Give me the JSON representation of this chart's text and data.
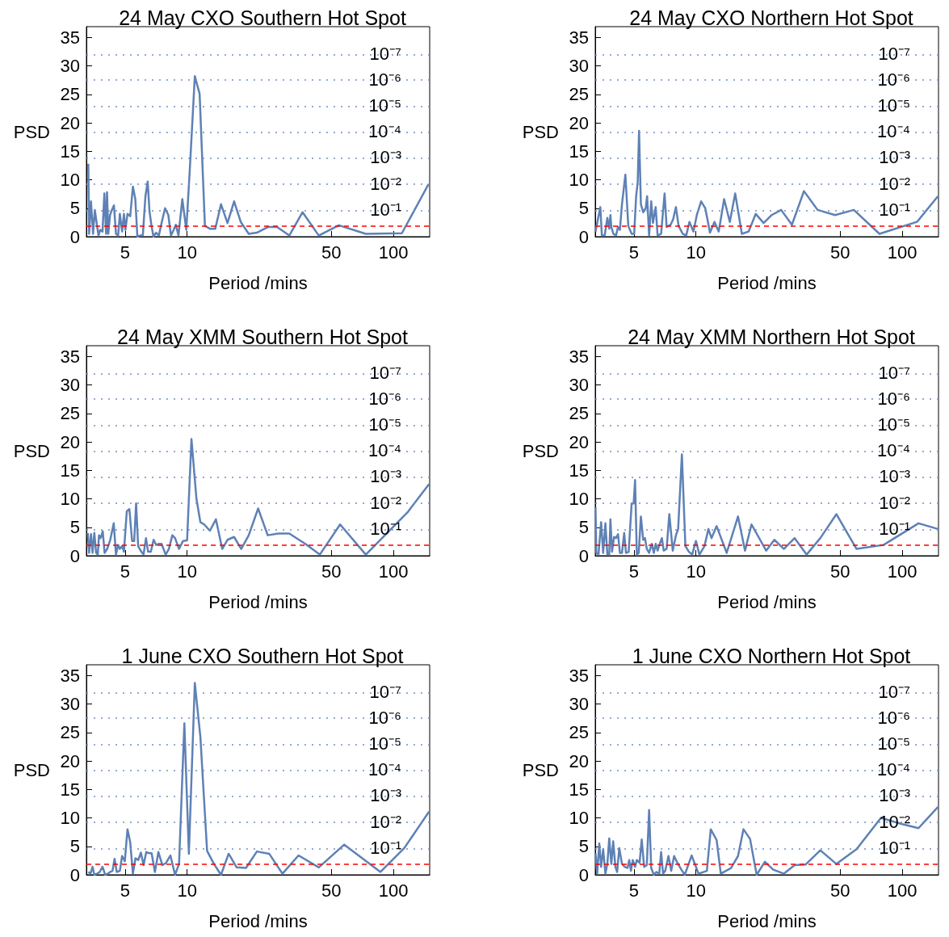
{
  "chart_data": [
    {
      "type": "line",
      "title": "24 May CXO Southern Hot Spot",
      "xlabel": "Period /mins",
      "ylabel": "PSD",
      "log": "x",
      "xlim": [
        3.25,
        150
      ],
      "ylim": [
        0,
        36.9
      ],
      "xticks": [
        5,
        10,
        50,
        100
      ],
      "yticks": [
        0,
        5,
        10,
        15,
        20,
        25,
        30,
        35
      ],
      "color": "#5e81b5",
      "x": [
        3.32,
        3.35,
        3.42,
        3.5,
        3.57,
        3.66,
        3.72,
        3.79,
        3.89,
        3.97,
        4.05,
        4.09,
        4.15,
        4.23,
        4.32,
        4.42,
        4.52,
        4.63,
        4.72,
        4.84,
        4.94,
        5.02,
        5.14,
        5.3,
        5.46,
        5.61,
        5.74,
        5.92,
        6.1,
        6.28,
        6.44,
        6.57,
        6.71,
        6.87,
        7.08,
        7.3,
        7.52,
        7.82,
        8.11,
        8.35,
        8.61,
        8.82,
        9.08,
        9.48,
        9.91,
        10.3,
        10.9,
        11.5,
        12.2,
        12.9,
        13.7,
        14.6,
        15.7,
        16.9,
        18.2,
        19.9,
        21.8,
        24.6,
        27.3,
        31.3,
        36.3,
        43.5,
        54.4,
        73.5,
        110,
        148
      ],
      "values": [
        12.8,
        0.5,
        6.2,
        0.5,
        4.7,
        1.9,
        0.2,
        1.2,
        0.9,
        7.6,
        0.5,
        7.8,
        0.5,
        3.8,
        4.7,
        5.5,
        0.5,
        0.2,
        4.0,
        0.9,
        4.0,
        1.2,
        4.0,
        3.6,
        8.8,
        6.6,
        0,
        0.2,
        0.2,
        7.1,
        9.7,
        4.5,
        2.1,
        0,
        0.7,
        0.2,
        2.4,
        5.0,
        3.8,
        0.2,
        1.2,
        2.1,
        0.2,
        6.6,
        1.2,
        11.6,
        28.2,
        25.1,
        1.9,
        1.4,
        1.4,
        5.7,
        2.4,
        6.2,
        2.6,
        0.5,
        0.7,
        1.7,
        1.7,
        0.2,
        4.3,
        0.2,
        2.0,
        0.5,
        0.6,
        9.2
      ],
      "ref_lines": [
        {
          "axis": "y",
          "value": 32.0,
          "label": "10⁻⁷",
          "color": "#6f8fc4",
          "line_style": "dotted"
        },
        {
          "axis": "y",
          "value": 27.5,
          "label": "10⁻⁶",
          "color": "#6f8fc4",
          "line_style": "dotted"
        },
        {
          "axis": "y",
          "value": 22.9,
          "label": "10⁻⁵",
          "color": "#6f8fc4",
          "line_style": "dotted"
        },
        {
          "axis": "y",
          "value": 18.4,
          "label": "10⁻⁴",
          "color": "#6f8fc4",
          "line_style": "dotted"
        },
        {
          "axis": "y",
          "value": 13.8,
          "label": "10⁻³",
          "color": "#6f8fc4",
          "line_style": "dotted"
        },
        {
          "axis": "y",
          "value": 9.2,
          "label": "10⁻²",
          "color": "#6f8fc4",
          "line_style": "dotted"
        },
        {
          "axis": "y",
          "value": 4.6,
          "label": "10⁻¹",
          "color": "#6f8fc4",
          "line_style": "dotted"
        },
        {
          "axis": "y",
          "value": 1.9,
          "color": "#ff0000",
          "line_style": "dashed"
        }
      ]
    },
    {
      "type": "line",
      "title": "24 May CXO Northern Hot Spot",
      "xlabel": "Period /mins",
      "ylabel": "PSD",
      "log": "x",
      "xlim": [
        3.25,
        150
      ],
      "ylim": [
        0,
        36.9
      ],
      "xticks": [
        5,
        10,
        50,
        100
      ],
      "yticks": [
        0,
        5,
        10,
        15,
        20,
        25,
        30,
        35
      ],
      "color": "#5e81b5",
      "x": [
        3.26,
        3.44,
        3.5,
        3.61,
        3.72,
        3.8,
        3.85,
        3.89,
        3.98,
        4.1,
        4.19,
        4.28,
        4.38,
        4.55,
        4.7,
        4.88,
        5.02,
        5.13,
        5.22,
        5.3,
        5.41,
        5.55,
        5.71,
        5.8,
        5.93,
        6.07,
        6.19,
        6.38,
        6.52,
        6.78,
        7.05,
        7.21,
        7.54,
        7.76,
        8.0,
        8.24,
        8.63,
        8.97,
        9.3,
        9.73,
        10.1,
        10.6,
        11.1,
        11.7,
        12.3,
        12.9,
        13.7,
        14.6,
        15.5,
        16.7,
        18.0,
        19.5,
        21.3,
        23.3,
        25.9,
        29.2,
        33.4,
        38.9,
        47.3,
        58.3,
        77.6,
        118,
        149
      ],
      "values": [
        0.9,
        5.2,
        0.2,
        0.2,
        3.3,
        1.4,
        3.8,
        1.7,
        0.5,
        0.2,
        1.7,
        1.2,
        5.7,
        10.9,
        1.9,
        0.5,
        0.5,
        7.1,
        9.5,
        18.6,
        5.7,
        4.3,
        5.0,
        7.1,
        0.2,
        6.2,
        2.4,
        5.2,
        0.2,
        0.5,
        7.6,
        1.7,
        2.1,
        3.1,
        5.2,
        1.9,
        0.5,
        0.2,
        2.6,
        0.9,
        3.8,
        6.2,
        5.0,
        0.7,
        2.6,
        0.9,
        6.6,
        2.6,
        7.6,
        0.5,
        0.9,
        4.0,
        2.4,
        3.8,
        4.7,
        2.1,
        8.0,
        4.7,
        3.8,
        4.7,
        0.5,
        2.6,
        7.1
      ],
      "ref_lines": [
        {
          "axis": "y",
          "value": 32.0,
          "label": "10⁻⁷",
          "color": "#6f8fc4",
          "line_style": "dotted"
        },
        {
          "axis": "y",
          "value": 27.5,
          "label": "10⁻⁶",
          "color": "#6f8fc4",
          "line_style": "dotted"
        },
        {
          "axis": "y",
          "value": 22.9,
          "label": "10⁻⁵",
          "color": "#6f8fc4",
          "line_style": "dotted"
        },
        {
          "axis": "y",
          "value": 18.4,
          "label": "10⁻⁴",
          "color": "#6f8fc4",
          "line_style": "dotted"
        },
        {
          "axis": "y",
          "value": 13.8,
          "label": "10⁻³",
          "color": "#6f8fc4",
          "line_style": "dotted"
        },
        {
          "axis": "y",
          "value": 9.2,
          "label": "10⁻²",
          "color": "#6f8fc4",
          "line_style": "dotted"
        },
        {
          "axis": "y",
          "value": 4.6,
          "label": "10⁻¹",
          "color": "#6f8fc4",
          "line_style": "dotted"
        },
        {
          "axis": "y",
          "value": 1.9,
          "color": "#ff0000",
          "line_style": "dashed"
        }
      ]
    },
    {
      "type": "line",
      "title": "24 May XMM Southern Hot Spot",
      "xlabel": "Period /mins",
      "ylabel": "PSD",
      "log": "x",
      "xlim": [
        3.25,
        150
      ],
      "ylim": [
        0,
        36.9
      ],
      "xticks": [
        5,
        10,
        50,
        100
      ],
      "yticks": [
        0,
        5,
        10,
        15,
        20,
        25,
        30,
        35
      ],
      "color": "#5e81b5",
      "x": [
        3.3,
        3.35,
        3.42,
        3.48,
        3.55,
        3.62,
        3.69,
        3.74,
        3.81,
        3.9,
        3.98,
        4.1,
        4.24,
        4.41,
        4.52,
        4.63,
        4.72,
        4.84,
        4.94,
        5.1,
        5.25,
        5.41,
        5.54,
        5.66,
        5.79,
        6.0,
        6.15,
        6.32,
        6.47,
        6.67,
        6.88,
        7.08,
        7.3,
        7.52,
        7.87,
        8.16,
        8.48,
        8.74,
        9.14,
        9.56,
        10.0,
        10.5,
        11.1,
        11.6,
        12.1,
        12.9,
        13.8,
        14.8,
        15.7,
        16.9,
        18.3,
        19.9,
        22.1,
        24.6,
        27.7,
        31.3,
        37.4,
        44.0,
        55.2,
        73.5,
        117,
        149
      ],
      "values": [
        4.0,
        0.5,
        3.8,
        0.5,
        4.0,
        0.5,
        0.2,
        3.6,
        3.1,
        4.3,
        0.5,
        1.2,
        2.8,
        5.7,
        0.2,
        1.9,
        1.2,
        1.7,
        0.7,
        7.8,
        8.2,
        2.6,
        2.6,
        9.2,
        1.7,
        0.7,
        0.2,
        3.1,
        0.7,
        0.7,
        2.8,
        1.9,
        2.1,
        2.1,
        0.2,
        1.2,
        3.6,
        3.1,
        1.2,
        2.6,
        2.7,
        20.5,
        10.0,
        5.9,
        5.5,
        4.4,
        6.4,
        1.2,
        2.8,
        3.3,
        1.2,
        3.6,
        8.3,
        3.6,
        3.9,
        3.9,
        2.1,
        0.2,
        5.5,
        0.2,
        7.6,
        12.6
      ],
      "ref_lines": [
        {
          "axis": "y",
          "value": 32.0,
          "label": "10⁻⁷",
          "color": "#6f8fc4",
          "line_style": "dotted"
        },
        {
          "axis": "y",
          "value": 27.5,
          "label": "10⁻⁶",
          "color": "#6f8fc4",
          "line_style": "dotted"
        },
        {
          "axis": "y",
          "value": 22.9,
          "label": "10⁻⁵",
          "color": "#6f8fc4",
          "line_style": "dotted"
        },
        {
          "axis": "y",
          "value": 18.4,
          "label": "10⁻⁴",
          "color": "#6f8fc4",
          "line_style": "dotted"
        },
        {
          "axis": "y",
          "value": 13.8,
          "label": "10⁻³",
          "color": "#6f8fc4",
          "line_style": "dotted"
        },
        {
          "axis": "y",
          "value": 9.2,
          "label": "10⁻²",
          "color": "#6f8fc4",
          "line_style": "dotted"
        },
        {
          "axis": "y",
          "value": 4.6,
          "label": "10⁻¹",
          "color": "#6f8fc4",
          "line_style": "dotted"
        },
        {
          "axis": "y",
          "value": 1.9,
          "color": "#ff0000",
          "line_style": "dashed"
        }
      ]
    },
    {
      "type": "line",
      "title": "24 May XMM Northern Hot Spot",
      "xlabel": "Period /mins",
      "ylabel": "PSD",
      "log": "x",
      "xlim": [
        3.25,
        150
      ],
      "ylim": [
        0,
        36.9
      ],
      "xticks": [
        5,
        10,
        50,
        100
      ],
      "yticks": [
        0,
        5,
        10,
        15,
        20,
        25,
        30,
        35
      ],
      "color": "#5e81b5",
      "x": [
        3.26,
        3.29,
        3.37,
        3.47,
        3.55,
        3.64,
        3.72,
        3.8,
        3.85,
        3.92,
        4.01,
        4.1,
        4.19,
        4.28,
        4.38,
        4.49,
        4.58,
        4.72,
        4.88,
        4.99,
        5.07,
        5.17,
        5.28,
        5.41,
        5.55,
        5.66,
        5.78,
        5.93,
        6.11,
        6.25,
        6.38,
        6.52,
        6.68,
        6.84,
        6.98,
        7.21,
        7.43,
        7.72,
        8.0,
        8.2,
        8.55,
        8.89,
        9.25,
        9.59,
        10.0,
        10.4,
        11.0,
        11.5,
        11.9,
        12.6,
        14.1,
        16.0,
        17.3,
        18.6,
        21.9,
        24.0,
        26.7,
        30.1,
        34.4,
        40.1,
        48.0,
        60.1,
        81.2,
        120,
        149
      ],
      "values": [
        8.5,
        0.5,
        0.2,
        5.9,
        0.5,
        5.7,
        0.2,
        0.2,
        6.4,
        0.7,
        3.3,
        3.1,
        3.8,
        0.5,
        0.5,
        4.0,
        0.5,
        0.7,
        9.2,
        9.2,
        13.3,
        0.2,
        0.5,
        6.9,
        2.8,
        3.1,
        1.2,
        0.5,
        2.1,
        0.5,
        2.1,
        0.9,
        2.1,
        3.1,
        0.9,
        1.2,
        7.3,
        0.9,
        3.6,
        4.7,
        17.8,
        1.7,
        0.7,
        0.2,
        2.6,
        0.2,
        1.7,
        4.7,
        3.1,
        5.2,
        0.5,
        6.9,
        0.9,
        5.5,
        0.9,
        2.8,
        1.2,
        3.1,
        0.2,
        3.1,
        7.3,
        1.2,
        1.9,
        5.7,
        4.7
      ],
      "ref_lines": [
        {
          "axis": "y",
          "value": 32.0,
          "label": "10⁻⁷",
          "color": "#6f8fc4",
          "line_style": "dotted"
        },
        {
          "axis": "y",
          "value": 27.5,
          "label": "10⁻⁶",
          "color": "#6f8fc4",
          "line_style": "dotted"
        },
        {
          "axis": "y",
          "value": 22.9,
          "label": "10⁻⁵",
          "color": "#6f8fc4",
          "line_style": "dotted"
        },
        {
          "axis": "y",
          "value": 18.4,
          "label": "10⁻⁴",
          "color": "#6f8fc4",
          "line_style": "dotted"
        },
        {
          "axis": "y",
          "value": 13.8,
          "label": "10⁻³",
          "color": "#6f8fc4",
          "line_style": "dotted"
        },
        {
          "axis": "y",
          "value": 9.2,
          "label": "10⁻²",
          "color": "#6f8fc4",
          "line_style": "dotted"
        },
        {
          "axis": "y",
          "value": 4.6,
          "label": "10⁻¹",
          "color": "#6f8fc4",
          "line_style": "dotted"
        },
        {
          "axis": "y",
          "value": 1.9,
          "color": "#ff0000",
          "line_style": "dashed"
        }
      ]
    },
    {
      "type": "line",
      "title": "1 June CXO Southern Hot Spot",
      "xlabel": "Period /mins",
      "ylabel": "PSD",
      "log": "x",
      "xlim": [
        3.25,
        150
      ],
      "ylim": [
        0,
        36.9
      ],
      "xticks": [
        5,
        10,
        50,
        100
      ],
      "yticks": [
        0,
        5,
        10,
        15,
        20,
        25,
        30,
        35
      ],
      "color": "#5e81b5",
      "x": [
        3.32,
        3.4,
        3.48,
        3.55,
        3.66,
        3.77,
        3.89,
        4.01,
        4.13,
        4.24,
        4.35,
        4.45,
        4.56,
        4.72,
        4.84,
        4.99,
        5.14,
        5.3,
        5.46,
        5.62,
        5.8,
        5.97,
        6.15,
        6.34,
        6.53,
        6.73,
        6.98,
        7.26,
        7.59,
        7.91,
        8.3,
        8.74,
        9.14,
        9.7,
        10.2,
        10.9,
        11.6,
        12.5,
        13.5,
        14.6,
        15.9,
        17.4,
        19.3,
        21.8,
        25.0,
        29.0,
        34.7,
        43.5,
        57.8,
        86.6,
        113,
        149
      ],
      "values": [
        0.5,
        0.2,
        1.4,
        0,
        0.2,
        0.5,
        1.4,
        0,
        0.2,
        0.5,
        0.7,
        2.8,
        0.5,
        0.7,
        3.3,
        2.4,
        8.0,
        5.7,
        0.2,
        2.9,
        2.6,
        3.9,
        1.7,
        4.0,
        3.8,
        3.8,
        0.5,
        4.0,
        1.7,
        2.1,
        3.4,
        0,
        1.9,
        26.6,
        3.7,
        33.7,
        24.2,
        4.2,
        1.9,
        0,
        3.7,
        1.3,
        1.2,
        4.1,
        3.7,
        0.2,
        3.4,
        1.3,
        5.3,
        0.5,
        4.7,
        11.1
      ],
      "ref_lines": [
        {
          "axis": "y",
          "value": 32.0,
          "label": "10⁻⁷",
          "color": "#6f8fc4",
          "line_style": "dotted"
        },
        {
          "axis": "y",
          "value": 27.5,
          "label": "10⁻⁶",
          "color": "#6f8fc4",
          "line_style": "dotted"
        },
        {
          "axis": "y",
          "value": 22.9,
          "label": "10⁻⁵",
          "color": "#6f8fc4",
          "line_style": "dotted"
        },
        {
          "axis": "y",
          "value": 18.4,
          "label": "10⁻⁴",
          "color": "#6f8fc4",
          "line_style": "dotted"
        },
        {
          "axis": "y",
          "value": 13.8,
          "label": "10⁻³",
          "color": "#6f8fc4",
          "line_style": "dotted"
        },
        {
          "axis": "y",
          "value": 9.2,
          "label": "10⁻²",
          "color": "#6f8fc4",
          "line_style": "dotted"
        },
        {
          "axis": "y",
          "value": 4.6,
          "label": "10⁻¹",
          "color": "#6f8fc4",
          "line_style": "dotted"
        },
        {
          "axis": "y",
          "value": 1.9,
          "color": "#ff0000",
          "line_style": "dashed"
        }
      ]
    },
    {
      "type": "line",
      "title": "1 June CXO Northern Hot Spot",
      "xlabel": "Period /mins",
      "ylabel": "PSD",
      "log": "x",
      "xlim": [
        3.25,
        150
      ],
      "ylim": [
        0,
        36.9
      ],
      "xticks": [
        5,
        10,
        50,
        100
      ],
      "yticks": [
        0,
        5,
        10,
        15,
        20,
        25,
        30,
        35
      ],
      "color": "#5e81b5",
      "x": [
        3.26,
        3.32,
        3.4,
        3.47,
        3.55,
        3.64,
        3.72,
        3.8,
        3.89,
        3.97,
        4.07,
        4.15,
        4.25,
        4.38,
        4.52,
        4.66,
        4.75,
        4.84,
        4.94,
        5.07,
        5.17,
        5.33,
        5.46,
        5.61,
        5.78,
        5.93,
        6.07,
        6.25,
        6.44,
        6.64,
        6.78,
        6.93,
        7.1,
        7.36,
        7.59,
        7.84,
        8.13,
        8.5,
        8.83,
        9.53,
        10.3,
        11.3,
        11.8,
        12.6,
        13.2,
        14.8,
        16.0,
        17.0,
        18.3,
        19.7,
        21.6,
        23.7,
        26.7,
        30.1,
        34.0,
        40.1,
        48.0,
        60.1,
        78.9,
        100,
        120,
        149
      ],
      "values": [
        3.8,
        0.2,
        5.5,
        1.4,
        4.5,
        0.2,
        1.9,
        6.4,
        1.9,
        5.9,
        1.4,
        0.5,
        4.7,
        1.9,
        1.4,
        1.2,
        2.6,
        0.7,
        2.6,
        1.4,
        2.6,
        2.1,
        6.2,
        1.4,
        1.7,
        11.4,
        1.2,
        0,
        0.5,
        0.2,
        4.0,
        0.2,
        0.7,
        3.3,
        0.7,
        3.3,
        2.1,
        0.9,
        0,
        3.4,
        0.2,
        0.7,
        8.0,
        6.1,
        0.2,
        1.2,
        3.3,
        8.0,
        6.3,
        0,
        2.3,
        0.9,
        0.2,
        1.7,
        1.8,
        4.3,
        1.9,
        4.5,
        10.0,
        8.9,
        8.2,
        11.9
      ],
      "ref_lines": [
        {
          "axis": "y",
          "value": 32.0,
          "label": "10⁻⁷",
          "color": "#6f8fc4",
          "line_style": "dotted"
        },
        {
          "axis": "y",
          "value": 27.5,
          "label": "10⁻⁶",
          "color": "#6f8fc4",
          "line_style": "dotted"
        },
        {
          "axis": "y",
          "value": 22.9,
          "label": "10⁻⁵",
          "color": "#6f8fc4",
          "line_style": "dotted"
        },
        {
          "axis": "y",
          "value": 18.4,
          "label": "10⁻⁴",
          "color": "#6f8fc4",
          "line_style": "dotted"
        },
        {
          "axis": "y",
          "value": 13.8,
          "label": "10⁻³",
          "color": "#6f8fc4",
          "line_style": "dotted"
        },
        {
          "axis": "y",
          "value": 9.2,
          "label": "10⁻²",
          "color": "#6f8fc4",
          "line_style": "dotted"
        },
        {
          "axis": "y",
          "value": 4.6,
          "label": "10⁻¹",
          "color": "#6f8fc4",
          "line_style": "dotted"
        },
        {
          "axis": "y",
          "value": 1.9,
          "color": "#ff0000",
          "line_style": "dashed"
        }
      ]
    }
  ]
}
